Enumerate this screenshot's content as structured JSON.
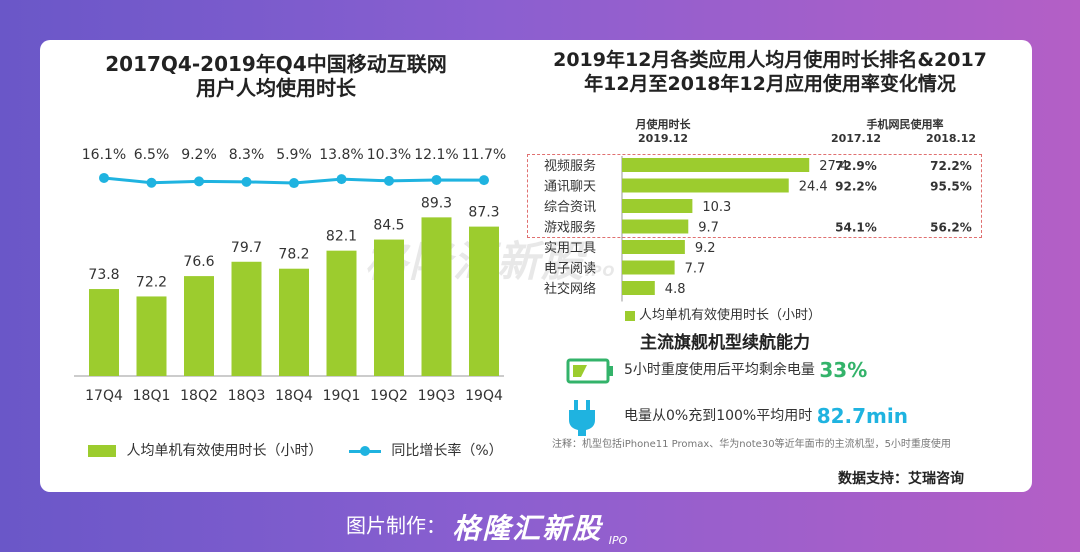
{
  "left_chart": {
    "title_line1": "2017Q4-2019年Q4中国移动互联网",
    "title_line2": "用户人均使用时长",
    "legend_bar": "人均单机有效使用时长（小时）",
    "legend_line": "同比增长率（%）"
  },
  "right_chart": {
    "title_line1": "2019年12月各类应用人均月使用时长排名&2017",
    "title_line2": "年12月至2018年12月应用使用率变化情况",
    "header_col1_line1": "月使用时长",
    "header_col1_line2": "2019.12",
    "header_col2": "手机网民使用率",
    "header_col2_a": "2017.12",
    "header_col2_b": "2018.12",
    "legend": "人均单机有效使用时长（小时）"
  },
  "battery_section": {
    "title": "主流旗舰机型续航能力",
    "battery_text": "5小时重度使用后平均剩余电量",
    "battery_value": "33%",
    "charge_text": "电量从0%充到100%平均用时",
    "charge_value": "82.7min",
    "note": "注释：机型包括iPhone11 Promax、华为note30等近年面市的主流机型，5小时重度使用"
  },
  "source": "数据支持：艾瑞咨询",
  "watermark": {
    "brand": "格隆汇新股",
    "suffix": "IPO"
  },
  "footer": {
    "label": "图片制作：",
    "brand": "格隆汇新股",
    "suffix": "IPO"
  },
  "colors": {
    "bar": "#9ccc2e",
    "line": "#1fb3e0",
    "green_text": "#33b36a"
  },
  "chart_data": [
    {
      "type": "bar",
      "title": "2017Q4-2019年Q4中国移动互联网用户人均使用时长",
      "categories": [
        "17Q4",
        "18Q1",
        "18Q2",
        "18Q3",
        "18Q4",
        "19Q1",
        "19Q2",
        "19Q3",
        "19Q4"
      ],
      "series": [
        {
          "name": "人均单机有效使用时长（小时）",
          "values": [
            73.8,
            72.2,
            76.6,
            79.7,
            78.2,
            82.1,
            84.5,
            89.3,
            87.3
          ]
        },
        {
          "name": "同比增长率（%）",
          "type": "line",
          "values": [
            16.1,
            6.5,
            9.2,
            8.3,
            5.9,
            13.8,
            10.3,
            12.1,
            11.7
          ],
          "labels": [
            "16.1%",
            "6.5%",
            "9.2%",
            "8.3%",
            "5.9%",
            "13.8%",
            "10.3%",
            "12.1%",
            "11.7%"
          ]
        }
      ],
      "ylim": [
        55,
        95
      ]
    },
    {
      "type": "bar",
      "orientation": "horizontal",
      "title": "2019年12月各类应用人均月使用时长排名",
      "categories": [
        "视频服务",
        "通讯聊天",
        "综合资讯",
        "游戏服务",
        "实用工具",
        "电子阅读",
        "社交网络"
      ],
      "values": [
        27.4,
        24.4,
        10.3,
        9.7,
        9.2,
        7.7,
        4.8
      ],
      "usage_rate_2017": [
        "72.9%",
        "92.2%",
        "",
        "54.1%",
        "",
        "",
        ""
      ],
      "usage_rate_2018": [
        "72.2%",
        "95.5%",
        "",
        "56.2%",
        "",
        "",
        ""
      ],
      "xlim": [
        0,
        30
      ]
    }
  ]
}
